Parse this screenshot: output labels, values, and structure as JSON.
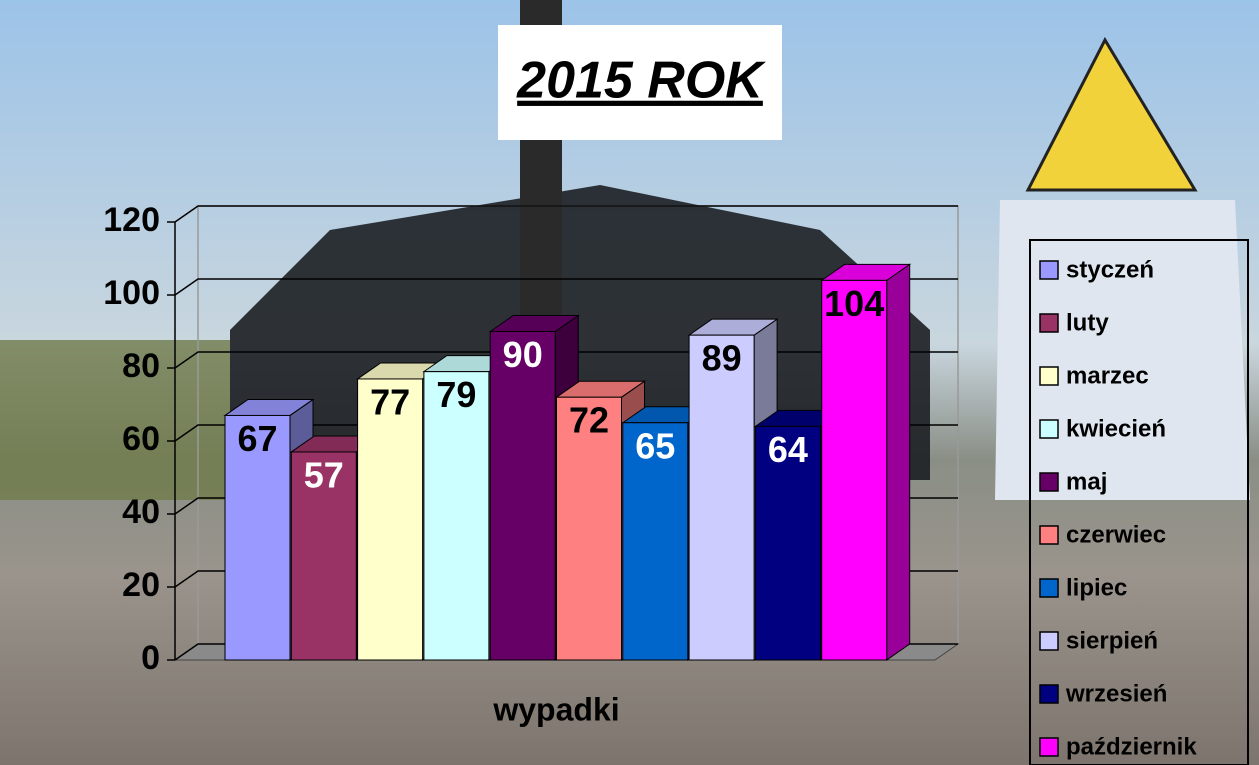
{
  "chart_data": {
    "type": "bar",
    "title": "2015 ROK",
    "categories": [
      "wypadki"
    ],
    "series": [
      {
        "name": "styczeń",
        "color": "#9999ff",
        "values": [
          67
        ]
      },
      {
        "name": "luty",
        "color": "#993366",
        "values": [
          57
        ]
      },
      {
        "name": "marzec",
        "color": "#ffffcc",
        "values": [
          77
        ]
      },
      {
        "name": "kwiecień",
        "color": "#ccffff",
        "values": [
          79
        ]
      },
      {
        "name": "maj",
        "color": "#660066",
        "values": [
          90
        ]
      },
      {
        "name": "czerwiec",
        "color": "#ff8080",
        "values": [
          72
        ]
      },
      {
        "name": "lipiec",
        "color": "#0066cc",
        "values": [
          65
        ]
      },
      {
        "name": "sierpień",
        "color": "#ccccff",
        "values": [
          89
        ]
      },
      {
        "name": "wrzesień",
        "color": "#000080",
        "values": [
          64
        ]
      },
      {
        "name": "październik",
        "color": "#ff00ff",
        "values": [
          104
        ]
      }
    ],
    "ylim": [
      0,
      120
    ],
    "yticks": [
      0,
      20,
      40,
      60,
      80,
      100,
      120
    ],
    "grid": true,
    "legend": "right"
  }
}
